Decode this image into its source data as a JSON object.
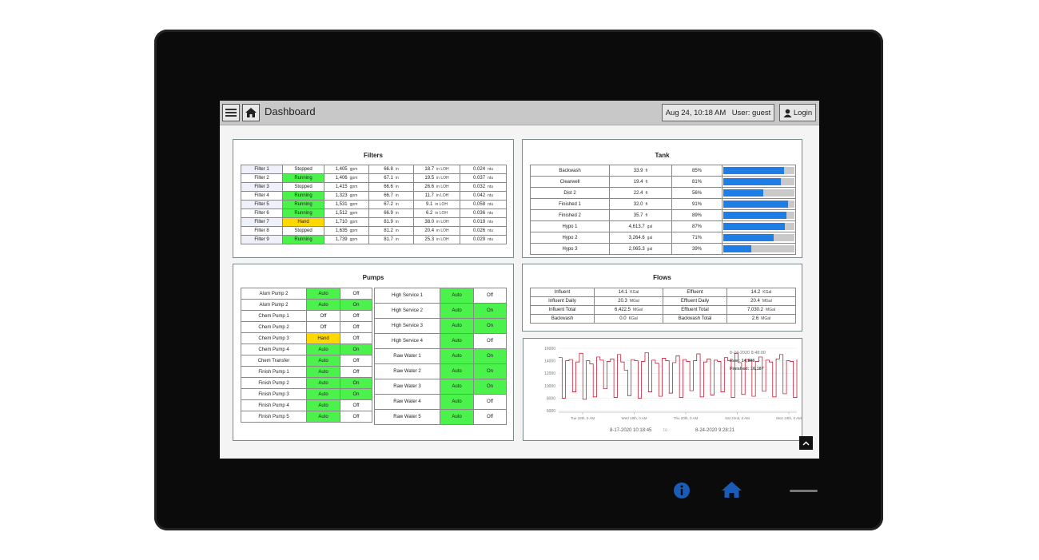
{
  "app": {
    "title": "Dashboard",
    "datetime": "Aug 24, 10:18 AM",
    "user": "User: guest",
    "login_label": "Login"
  },
  "colors": {
    "running": "#4cf24c",
    "hand": "#ffd800",
    "bar": "#1f7de6",
    "raw_line": "#c0001a"
  },
  "filters": {
    "title": "Filters",
    "rows": [
      {
        "name": "Filter 1",
        "state": "Stopped",
        "flow": "1,405",
        "flow_unit": "gpm",
        "level": "66.8",
        "level_unit": "in",
        "loh": "18.7",
        "loh_unit": "in LOH",
        "turb": "0.024",
        "turb_unit": "ntu"
      },
      {
        "name": "Filter 2",
        "state": "Running",
        "flow": "1,406",
        "flow_unit": "gpm",
        "level": "67.1",
        "level_unit": "in",
        "loh": "19.5",
        "loh_unit": "in LOH",
        "turb": "0.037",
        "turb_unit": "ntu"
      },
      {
        "name": "Filter 3",
        "state": "Stopped",
        "flow": "1,415",
        "flow_unit": "gpm",
        "level": "66.6",
        "level_unit": "in",
        "loh": "26.6",
        "loh_unit": "in LOH",
        "turb": "0.032",
        "turb_unit": "ntu"
      },
      {
        "name": "Filter 4",
        "state": "Running",
        "flow": "1,323",
        "flow_unit": "gpm",
        "level": "66.7",
        "level_unit": "in",
        "loh": "11.7",
        "loh_unit": "in LOH",
        "turb": "0.042",
        "turb_unit": "ntu"
      },
      {
        "name": "Filter 5",
        "state": "Running",
        "flow": "1,531",
        "flow_unit": "gpm",
        "level": "67.2",
        "level_unit": "in",
        "loh": "9.1",
        "loh_unit": "in LOH",
        "turb": "0.058",
        "turb_unit": "ntu"
      },
      {
        "name": "Filter 6",
        "state": "Running",
        "flow": "1,512",
        "flow_unit": "gpm",
        "level": "66.9",
        "level_unit": "in",
        "loh": "6.2",
        "loh_unit": "in LOH",
        "turb": "0.036",
        "turb_unit": "ntu"
      },
      {
        "name": "Filter 7",
        "state": "Hand",
        "flow": "1,710",
        "flow_unit": "gpm",
        "level": "81.9",
        "level_unit": "in",
        "loh": "38.0",
        "loh_unit": "in LOH",
        "turb": "0.019",
        "turb_unit": "ntu"
      },
      {
        "name": "Filter 8",
        "state": "Stopped",
        "flow": "1,635",
        "flow_unit": "gpm",
        "level": "81.2",
        "level_unit": "in",
        "loh": "20.4",
        "loh_unit": "in LOH",
        "turb": "0.026",
        "turb_unit": "ntu"
      },
      {
        "name": "Filter 9",
        "state": "Running",
        "flow": "1,739",
        "flow_unit": "gpm",
        "level": "81.7",
        "level_unit": "in",
        "loh": "25.3",
        "loh_unit": "in LOH",
        "turb": "0.029",
        "turb_unit": "ntu"
      }
    ]
  },
  "tank": {
    "title": "Tank",
    "rows": [
      {
        "name": "Backwash",
        "value": "33.9",
        "unit": "ft",
        "pct": "85%",
        "fill": 0.85
      },
      {
        "name": "Clearwell",
        "value": "19.4",
        "unit": "ft",
        "pct": "81%",
        "fill": 0.81
      },
      {
        "name": "Dist 2",
        "value": "22.4",
        "unit": "ft",
        "pct": "56%",
        "fill": 0.56
      },
      {
        "name": "Finished 1",
        "value": "32.0",
        "unit": "ft",
        "pct": "91%",
        "fill": 0.91
      },
      {
        "name": "Finished 2",
        "value": "35.7",
        "unit": "ft",
        "pct": "89%",
        "fill": 0.89
      },
      {
        "name": "Hypo 1",
        "value": "4,613.7",
        "unit": "gal",
        "pct": "87%",
        "fill": 0.87
      },
      {
        "name": "Hypo 2",
        "value": "3,264.6",
        "unit": "gal",
        "pct": "71%",
        "fill": 0.71
      },
      {
        "name": "Hypo 3",
        "value": "2,065.3",
        "unit": "gal",
        "pct": "39%",
        "fill": 0.39
      }
    ]
  },
  "pumps": {
    "title": "Pumps",
    "left": [
      {
        "name": "Alum Pump 2",
        "mode": "Auto",
        "state": "Off"
      },
      {
        "name": "Alum Pump 2",
        "mode": "Auto",
        "state": "On"
      },
      {
        "name": "Chem Pump 1",
        "mode": "Off",
        "state": "Off"
      },
      {
        "name": "Chem Pump 2",
        "mode": "Off",
        "state": "Off"
      },
      {
        "name": "Chem Pump 3",
        "mode": "Hand",
        "state": "Off"
      },
      {
        "name": "Chem Pump 4",
        "mode": "Auto",
        "state": "On"
      },
      {
        "name": "Chem Transfer",
        "mode": "Auto",
        "state": "Off"
      },
      {
        "name": "Finish Pump 1",
        "mode": "Auto",
        "state": "Off"
      },
      {
        "name": "Finish Pump 2",
        "mode": "Auto",
        "state": "On"
      },
      {
        "name": "Finish Pump 3",
        "mode": "Auto",
        "state": "On"
      },
      {
        "name": "Finish Pump 4",
        "mode": "Auto",
        "state": "Off"
      },
      {
        "name": "Finish Pump 5",
        "mode": "Auto",
        "state": "Off"
      }
    ],
    "right": [
      {
        "name": "High Service 1",
        "mode": "Auto",
        "state": "Off"
      },
      {
        "name": "High Service 2",
        "mode": "Auto",
        "state": "On"
      },
      {
        "name": "High Service 3",
        "mode": "Auto",
        "state": "On"
      },
      {
        "name": "High Service 4",
        "mode": "Auto",
        "state": "Off"
      },
      {
        "name": "Raw Water 1",
        "mode": "Auto",
        "state": "On"
      },
      {
        "name": "Raw Water 2",
        "mode": "Auto",
        "state": "On"
      },
      {
        "name": "Raw Water 3",
        "mode": "Auto",
        "state": "On"
      },
      {
        "name": "Raw Water 4",
        "mode": "Auto",
        "state": "Off"
      },
      {
        "name": "Raw Water 5",
        "mode": "Auto",
        "state": "Off"
      }
    ]
  },
  "flows": {
    "title": "Flows",
    "rows": [
      {
        "l_name": "Influent",
        "l_val": "14.1",
        "l_unit": "KGal",
        "r_name": "Effluent",
        "r_val": "14.2",
        "r_unit": "KGal"
      },
      {
        "l_name": "Influent Daily",
        "l_val": "20.3",
        "l_unit": "MGal",
        "r_name": "Effluent Daily",
        "r_val": "20.4",
        "r_unit": "MGal"
      },
      {
        "l_name": "Influent Total",
        "l_val": "6,422.5",
        "l_unit": "MGal",
        "r_name": "Effluent Total",
        "r_val": "7,030.2",
        "r_unit": "MGal"
      },
      {
        "l_name": "Backwash",
        "l_val": "0.0",
        "l_unit": "KGal",
        "r_name": "Backwash Total",
        "r_val": "2.6",
        "r_unit": "MGal"
      }
    ]
  },
  "chart_data": {
    "type": "line",
    "title": "",
    "y_ticks": [
      "16000",
      "14000",
      "12000",
      "10000",
      "8000",
      "6000"
    ],
    "ylim": [
      6000,
      16000
    ],
    "x_ticks": [
      "Tue 18th, 0 AM",
      "Wed 19th, 0 AM",
      "Thu 20th, 0 AM",
      "Sat 22nd, 0 AM",
      "Mon 24th, 0 AM"
    ],
    "tooltip": {
      "time": "8-24-2020 8:48:00",
      "raw": "Raw: 14,386",
      "finished": "Finished: 16,187"
    },
    "range_start": "8-17-2020 10:18:45",
    "range_sep": "to",
    "range_end": "8-24-2020 9:28:21",
    "series": [
      {
        "name": "Raw",
        "values": [
          14500,
          8000,
          14000,
          14200,
          9000,
          13800,
          15200,
          7800,
          14000,
          13500,
          8200,
          14600,
          14100,
          9500,
          13900,
          14300,
          8100,
          15000,
          13800,
          12500,
          8400,
          14200,
          14000,
          8000,
          13900,
          15300,
          9000,
          14100,
          13600,
          8300,
          14400,
          14000,
          8800,
          13700,
          14800,
          8100,
          14200,
          13900,
          9200,
          14000,
          15100,
          8200,
          13800,
          14300,
          8500,
          14100,
          13900,
          9000,
          14500,
          14000,
          8100,
          15200,
          13700,
          8600,
          14200,
          14000,
          8300,
          13900,
          14600,
          9100,
          14100,
          13800,
          8200,
          14300,
          15000,
          8700,
          14000,
          13900,
          8100,
          14200
        ]
      }
    ]
  },
  "device": {
    "info_icon": "info-icon",
    "home_icon": "home-icon"
  }
}
